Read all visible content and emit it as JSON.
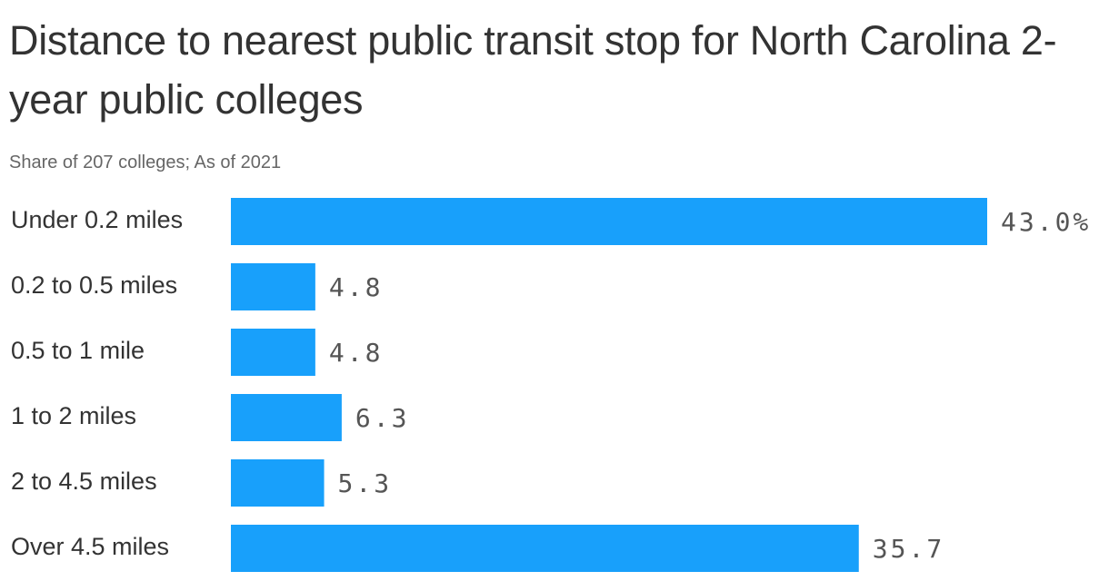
{
  "chart_data": {
    "type": "bar",
    "orientation": "horizontal",
    "title": "Distance to nearest public transit stop for North Carolina 2-year public colleges",
    "subtitle": "Share of 207 colleges; As of 2021",
    "categories": [
      "Under 0.2 miles",
      "0.2 to 0.5 miles",
      "0.5 to 1 mile",
      "1 to 2 miles",
      "2 to 4.5 miles",
      "Over 4.5 miles"
    ],
    "values": [
      43.0,
      4.8,
      4.8,
      6.3,
      5.3,
      35.7
    ],
    "value_labels": [
      "43.0%",
      "4.8",
      "4.8",
      "6.3",
      "5.3",
      "35.7"
    ],
    "color": "#18a0fb"
  }
}
